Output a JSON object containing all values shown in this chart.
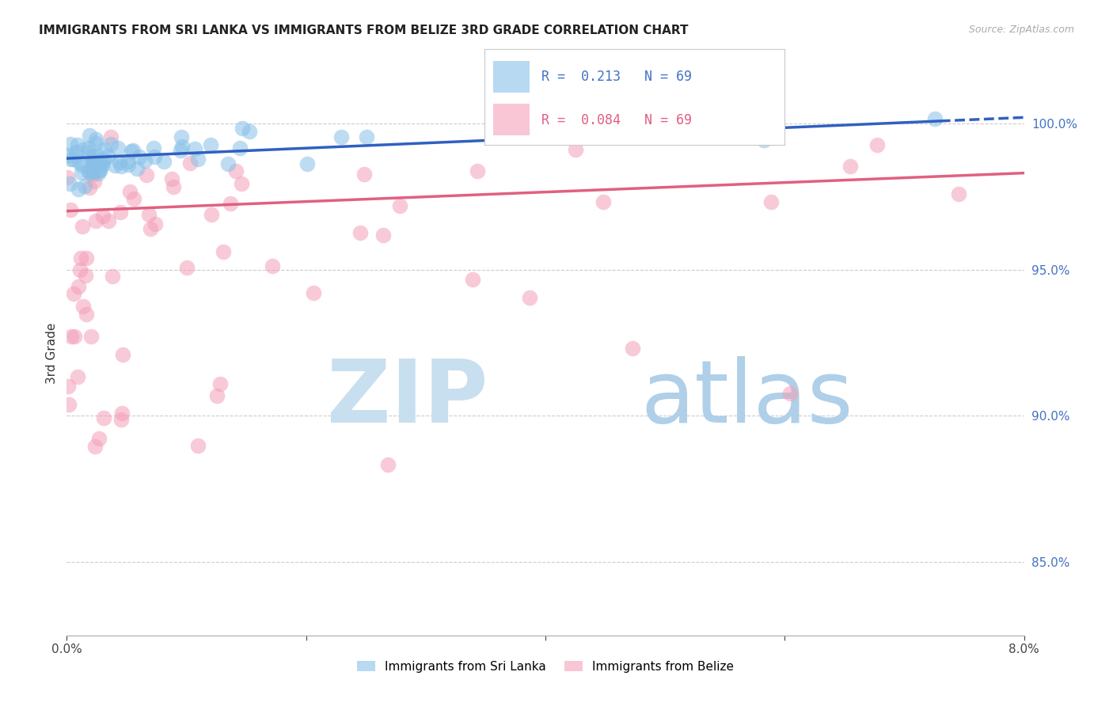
{
  "title": "IMMIGRANTS FROM SRI LANKA VS IMMIGRANTS FROM BELIZE 3RD GRADE CORRELATION CHART",
  "source": "Source: ZipAtlas.com",
  "ylabel": "3rd Grade",
  "legend_sri_lanka": "Immigrants from Sri Lanka",
  "legend_belize": "Immigrants from Belize",
  "R_sri_lanka": 0.213,
  "N_sri_lanka": 69,
  "R_belize": 0.084,
  "N_belize": 69,
  "color_sri_lanka": "#88c0e8",
  "color_belize": "#f4a0b8",
  "color_line_sri_lanka": "#3060c0",
  "color_line_belize": "#e06080",
  "x_min": 0.0,
  "x_max": 0.08,
  "y_min": 0.825,
  "y_max": 1.018,
  "sl_trend_x0": 0.0,
  "sl_trend_y0": 0.988,
  "sl_trend_x1": 0.08,
  "sl_trend_y1": 1.002,
  "bz_trend_x0": 0.0,
  "bz_trend_y0": 0.97,
  "bz_trend_x1": 0.08,
  "bz_trend_y1": 0.983,
  "right_yticks": [
    0.85,
    0.9,
    0.95,
    1.0
  ],
  "right_yticklabels": [
    "85.0%",
    "90.0%",
    "95.0%",
    "100.0%"
  ]
}
